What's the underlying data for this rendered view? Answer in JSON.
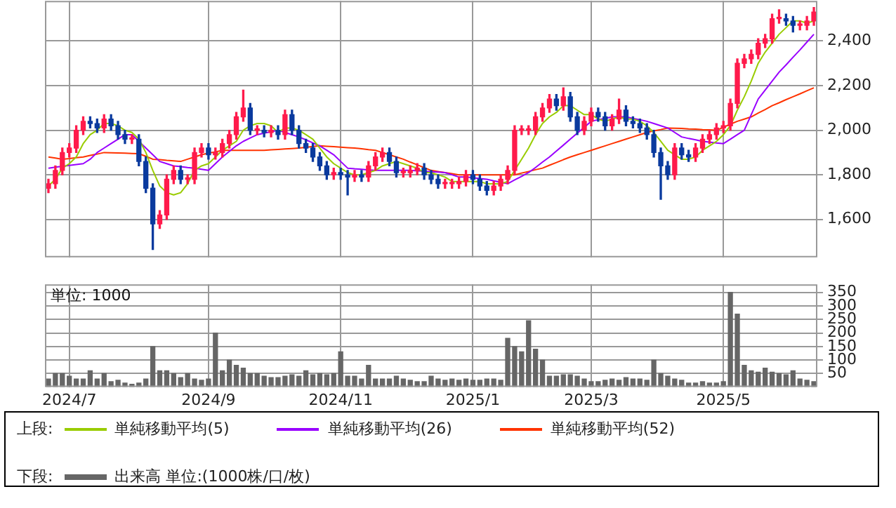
{
  "chart_data": [
    {
      "type": "candlestick",
      "legend_title": "上段:",
      "legend": "bottom",
      "grid": true,
      "tick_labels": "y",
      "marker": "none",
      "categories": [
        null,
        null,
        null,
        "2024/7",
        null,
        null,
        null,
        null,
        null,
        null,
        null,
        null,
        null,
        null,
        null,
        null,
        null,
        null,
        null,
        null,
        null,
        null,
        null,
        "2024/9",
        null,
        null,
        null,
        null,
        null,
        null,
        null,
        null,
        null,
        null,
        null,
        null,
        null,
        null,
        null,
        null,
        null,
        null,
        "2024/11",
        null,
        null,
        null,
        null,
        null,
        null,
        null,
        null,
        null,
        null,
        null,
        null,
        null,
        null,
        null,
        null,
        null,
        null,
        "2025/1",
        null,
        null,
        null,
        null,
        null,
        null,
        null,
        null,
        null,
        null,
        null,
        null,
        null,
        null,
        null,
        null,
        "2025/3",
        null,
        null,
        null,
        null,
        null,
        null,
        null,
        null,
        null,
        null,
        null,
        null,
        null,
        null,
        null,
        null,
        null,
        null,
        "2025/5",
        null,
        null,
        null,
        null,
        null,
        null,
        null,
        null,
        null,
        null,
        null,
        null,
        null
      ],
      "ylim": [
        1430,
        2580
      ],
      "yticks": [
        {
          "value": 1600,
          "label": "1,600"
        },
        {
          "value": 1800,
          "label": "1,800"
        },
        {
          "value": 2000,
          "label": "2,000"
        },
        {
          "value": 2200,
          "label": "2,200"
        },
        {
          "value": 2400,
          "label": "2,400"
        }
      ],
      "ohlc": [
        [
          1740,
          1780,
          1720,
          1760
        ],
        [
          1760,
          1840,
          1740,
          1820
        ],
        [
          1820,
          1920,
          1800,
          1900
        ],
        [
          1900,
          1940,
          1880,
          1920
        ],
        [
          1920,
          2020,
          1900,
          2000
        ],
        [
          2000,
          2060,
          1980,
          2040
        ],
        [
          2040,
          2060,
          2010,
          2030
        ],
        [
          2030,
          2050,
          1990,
          2010
        ],
        [
          2010,
          2070,
          1990,
          2050
        ],
        [
          2050,
          2070,
          2000,
          2020
        ],
        [
          2020,
          2040,
          1960,
          1980
        ],
        [
          1980,
          2000,
          1940,
          1960
        ],
        [
          1960,
          1980,
          1940,
          1960
        ],
        [
          1960,
          1980,
          1840,
          1860
        ],
        [
          1860,
          1880,
          1720,
          1740
        ],
        [
          1740,
          1760,
          1465,
          1580
        ],
        [
          1580,
          1640,
          1560,
          1620
        ],
        [
          1620,
          1800,
          1600,
          1780
        ],
        [
          1780,
          1840,
          1760,
          1820
        ],
        [
          1820,
          1840,
          1760,
          1780
        ],
        [
          1780,
          1800,
          1760,
          1780
        ],
        [
          1780,
          1920,
          1760,
          1900
        ],
        [
          1900,
          1940,
          1880,
          1920
        ],
        [
          1920,
          1940,
          1870,
          1890
        ],
        [
          1890,
          1920,
          1870,
          1900
        ],
        [
          1900,
          1960,
          1880,
          1940
        ],
        [
          1940,
          2000,
          1920,
          1980
        ],
        [
          1980,
          2080,
          1960,
          2060
        ],
        [
          2060,
          2180,
          2040,
          2100
        ],
        [
          2100,
          2120,
          1980,
          2000
        ],
        [
          2000,
          2020,
          1980,
          2000
        ],
        [
          2000,
          2020,
          1970,
          1990
        ],
        [
          1990,
          2020,
          1970,
          2000
        ],
        [
          2000,
          2020,
          1960,
          1980
        ],
        [
          1980,
          2090,
          1960,
          2070
        ],
        [
          2070,
          2090,
          1980,
          2000
        ],
        [
          2000,
          2020,
          1920,
          1940
        ],
        [
          1940,
          1960,
          1900,
          1920
        ],
        [
          1920,
          1940,
          1860,
          1880
        ],
        [
          1880,
          1900,
          1820,
          1840
        ],
        [
          1840,
          1860,
          1780,
          1800
        ],
        [
          1800,
          1830,
          1780,
          1810
        ],
        [
          1810,
          1830,
          1780,
          1800
        ],
        [
          1800,
          1820,
          1710,
          1790
        ],
        [
          1790,
          1820,
          1770,
          1800
        ],
        [
          1800,
          1820,
          1770,
          1790
        ],
        [
          1790,
          1860,
          1770,
          1840
        ],
        [
          1840,
          1900,
          1820,
          1880
        ],
        [
          1880,
          1920,
          1860,
          1900
        ],
        [
          1900,
          1920,
          1840,
          1860
        ],
        [
          1860,
          1880,
          1790,
          1810
        ],
        [
          1810,
          1830,
          1790,
          1810
        ],
        [
          1810,
          1840,
          1790,
          1820
        ],
        [
          1820,
          1850,
          1800,
          1830
        ],
        [
          1830,
          1850,
          1780,
          1800
        ],
        [
          1800,
          1820,
          1760,
          1780
        ],
        [
          1780,
          1800,
          1740,
          1760
        ],
        [
          1760,
          1780,
          1740,
          1760
        ],
        [
          1760,
          1780,
          1740,
          1760
        ],
        [
          1760,
          1790,
          1740,
          1770
        ],
        [
          1770,
          1820,
          1750,
          1800
        ],
        [
          1800,
          1820,
          1760,
          1780
        ],
        [
          1780,
          1800,
          1730,
          1750
        ],
        [
          1750,
          1770,
          1710,
          1730
        ],
        [
          1730,
          1770,
          1710,
          1750
        ],
        [
          1750,
          1800,
          1730,
          1780
        ],
        [
          1780,
          1840,
          1760,
          1820
        ],
        [
          1820,
          2020,
          1800,
          2000
        ],
        [
          2000,
          2020,
          1980,
          2000
        ],
        [
          2000,
          2020,
          1980,
          2000
        ],
        [
          2000,
          2080,
          1980,
          2060
        ],
        [
          2060,
          2120,
          2040,
          2100
        ],
        [
          2100,
          2160,
          2080,
          2140
        ],
        [
          2140,
          2160,
          2090,
          2110
        ],
        [
          2110,
          2190,
          2090,
          2150
        ],
        [
          2150,
          2170,
          2040,
          2060
        ],
        [
          2060,
          2080,
          1980,
          2000
        ],
        [
          2000,
          2060,
          1980,
          2040
        ],
        [
          2040,
          2100,
          2020,
          2080
        ],
        [
          2080,
          2100,
          2040,
          2060
        ],
        [
          2060,
          2080,
          2000,
          2020
        ],
        [
          2020,
          2070,
          2000,
          2050
        ],
        [
          2050,
          2140,
          2030,
          2090
        ],
        [
          2090,
          2110,
          2020,
          2040
        ],
        [
          2040,
          2060,
          2010,
          2030
        ],
        [
          2030,
          2050,
          1990,
          2010
        ],
        [
          2010,
          2030,
          1960,
          1980
        ],
        [
          1980,
          2000,
          1880,
          1900
        ],
        [
          1900,
          1920,
          1690,
          1840
        ],
        [
          1840,
          1860,
          1780,
          1800
        ],
        [
          1800,
          1940,
          1780,
          1920
        ],
        [
          1920,
          1940,
          1870,
          1890
        ],
        [
          1890,
          1910,
          1860,
          1880
        ],
        [
          1880,
          1940,
          1860,
          1920
        ],
        [
          1920,
          1980,
          1900,
          1960
        ],
        [
          1960,
          2000,
          1940,
          1980
        ],
        [
          1980,
          2030,
          1960,
          2010
        ],
        [
          2010,
          2040,
          1990,
          2020
        ],
        [
          2020,
          2140,
          2000,
          2120
        ],
        [
          2120,
          2320,
          2100,
          2300
        ],
        [
          2300,
          2340,
          2280,
          2320
        ],
        [
          2320,
          2360,
          2300,
          2340
        ],
        [
          2340,
          2410,
          2320,
          2390
        ],
        [
          2390,
          2430,
          2370,
          2410
        ],
        [
          2410,
          2520,
          2390,
          2500
        ],
        [
          2500,
          2540,
          2480,
          2500
        ],
        [
          2500,
          2520,
          2470,
          2490
        ],
        [
          2490,
          2510,
          2440,
          2470
        ],
        [
          2470,
          2490,
          2450,
          2470
        ],
        [
          2470,
          2510,
          2450,
          2490
        ],
        [
          2490,
          2550,
          2470,
          2530
        ]
      ],
      "series": [
        {
          "type": "line",
          "name": "単純移動平均(5)",
          "color": "#99cc00",
          "values": [
            1750,
            1780,
            1830,
            1850,
            1880,
            1940,
            1980,
            2000,
            2030,
            2030,
            2020,
            2000,
            1990,
            1960,
            1900,
            1820,
            1750,
            1720,
            1710,
            1720,
            1760,
            1820,
            1840,
            1850,
            1880,
            1910,
            1930,
            1950,
            2000,
            2020,
            2030,
            2030,
            2020,
            1990,
            2010,
            2010,
            2000,
            1980,
            1960,
            1920,
            1880,
            1850,
            1830,
            1810,
            1800,
            1800,
            1810,
            1820,
            1840,
            1850,
            1860,
            1850,
            1840,
            1830,
            1810,
            1810,
            1800,
            1790,
            1770,
            1770,
            1770,
            1770,
            1770,
            1760,
            1760,
            1760,
            1770,
            1820,
            1870,
            1920,
            1980,
            2030,
            2060,
            2080,
            2110,
            2110,
            2090,
            2070,
            2070,
            2050,
            2040,
            2050,
            2060,
            2050,
            2050,
            2040,
            2020,
            1990,
            1950,
            1910,
            1890,
            1870,
            1870,
            1880,
            1910,
            1930,
            1950,
            1980,
            2020,
            2090,
            2150,
            2220,
            2300,
            2350,
            2390,
            2430,
            2460,
            2490,
            2490,
            2480,
            2490
          ]
        },
        {
          "type": "line",
          "name": "単純移動平均(26)",
          "color": "#9900ff",
          "values": [
            1830,
            1834,
            1838,
            1842,
            1846,
            1850,
            1870,
            1900,
            1920,
            1940,
            1960,
            1980,
            1980,
            1950,
            1920,
            1890,
            1860,
            1850,
            1840,
            1837,
            1833,
            1830,
            1825,
            1820,
            1850,
            1880,
            1905,
            1930,
            1950,
            1965,
            1980,
            1987,
            1993,
            2000,
            1990,
            1980,
            1970,
            1957,
            1943,
            1930,
            1910,
            1890,
            1860,
            1830,
            1827,
            1825,
            1822,
            1820,
            1820,
            1820,
            1820,
            1820,
            1820,
            1818,
            1816,
            1814,
            1812,
            1810,
            1800,
            1790,
            1790,
            1787,
            1783,
            1780,
            1773,
            1767,
            1760,
            1777,
            1793,
            1810,
            1833,
            1857,
            1880,
            1907,
            1933,
            1960,
            1987,
            2013,
            2040,
            2047,
            2053,
            2060,
            2060,
            2060,
            2053,
            2047,
            2040,
            2030,
            2020,
            2010,
            1990,
            1970,
            1963,
            1957,
            1950,
            1947,
            1943,
            1940,
            1960,
            1980,
            2000,
            2070,
            2140,
            2180,
            2220,
            2260,
            2293,
            2327,
            2360,
            2395,
            2430
          ]
        },
        {
          "type": "line",
          "name": "単純移動平均(52)",
          "color": "#ff3300",
          "values": [
            1880,
            1875,
            1870,
            1873,
            1877,
            1880,
            1887,
            1893,
            1900,
            1899,
            1898,
            1897,
            1896,
            1895,
            1883,
            1870,
            1868,
            1865,
            1863,
            1860,
            1870,
            1880,
            1890,
            1897,
            1903,
            1910,
            1910,
            1910,
            1910,
            1910,
            1910,
            1910,
            1912,
            1914,
            1916,
            1918,
            1920,
            1923,
            1927,
            1930,
            1928,
            1926,
            1924,
            1922,
            1920,
            1917,
            1913,
            1910,
            1900,
            1890,
            1880,
            1870,
            1857,
            1845,
            1832,
            1820,
            1815,
            1810,
            1805,
            1800,
            1800,
            1800,
            1800,
            1800,
            1800,
            1800,
            1800,
            1800,
            1808,
            1815,
            1823,
            1830,
            1843,
            1855,
            1868,
            1880,
            1890,
            1900,
            1910,
            1920,
            1930,
            1940,
            1950,
            1960,
            1970,
            1980,
            1990,
            1997,
            2003,
            2010,
            2009,
            2008,
            2006,
            2005,
            2003,
            2002,
            2000,
            2013,
            2027,
            2040,
            2050,
            2060,
            2077,
            2093,
            2110,
            2123,
            2137,
            2150,
            2163,
            2177,
            2190
          ]
        }
      ]
    },
    {
      "type": "bar",
      "legend_title": "下段:",
      "legend": "bottom",
      "grid": true,
      "categories": [
        null,
        null,
        null,
        "2024/7",
        null,
        null,
        null,
        null,
        null,
        null,
        null,
        null,
        null,
        null,
        null,
        null,
        null,
        null,
        null,
        null,
        null,
        null,
        null,
        "2024/9",
        null,
        null,
        null,
        null,
        null,
        null,
        null,
        null,
        null,
        null,
        null,
        null,
        null,
        null,
        null,
        null,
        null,
        null,
        "2024/11",
        null,
        null,
        null,
        null,
        null,
        null,
        null,
        null,
        null,
        null,
        null,
        null,
        null,
        null,
        null,
        null,
        null,
        null,
        "2025/1",
        null,
        null,
        null,
        null,
        null,
        null,
        null,
        null,
        null,
        null,
        null,
        null,
        null,
        null,
        null,
        null,
        "2025/3",
        null,
        null,
        null,
        null,
        null,
        null,
        null,
        null,
        null,
        null,
        null,
        null,
        null,
        null,
        null,
        null,
        null,
        null,
        "2025/5",
        null,
        null,
        null,
        null,
        null,
        null,
        null,
        null,
        null,
        null,
        null,
        null,
        null
      ],
      "ylim": [
        0,
        380
      ],
      "yticks": [
        50,
        100,
        150,
        200,
        250,
        300,
        350
      ],
      "annotations": [
        "単位: 1000"
      ],
      "series": [
        {
          "name": "出来高 単位:(1000株/口/枚)",
          "color": "#666666",
          "values": [
            30,
            50,
            50,
            40,
            30,
            30,
            60,
            30,
            50,
            20,
            25,
            15,
            10,
            15,
            30,
            150,
            60,
            60,
            50,
            35,
            50,
            30,
            25,
            30,
            200,
            60,
            100,
            80,
            70,
            50,
            50,
            40,
            35,
            35,
            40,
            45,
            40,
            60,
            45,
            50,
            45,
            50,
            130,
            40,
            40,
            30,
            80,
            30,
            30,
            30,
            40,
            30,
            25,
            20,
            20,
            40,
            30,
            25,
            30,
            25,
            30,
            25,
            25,
            30,
            30,
            25,
            180,
            150,
            130,
            245,
            140,
            100,
            40,
            40,
            45,
            45,
            40,
            30,
            20,
            20,
            25,
            30,
            25,
            35,
            30,
            30,
            25,
            100,
            50,
            40,
            30,
            25,
            15,
            15,
            20,
            15,
            15,
            20,
            350,
            270,
            80,
            60,
            55,
            70,
            55,
            50,
            45,
            60,
            30,
            25,
            20
          ]
        }
      ]
    }
  ]
}
